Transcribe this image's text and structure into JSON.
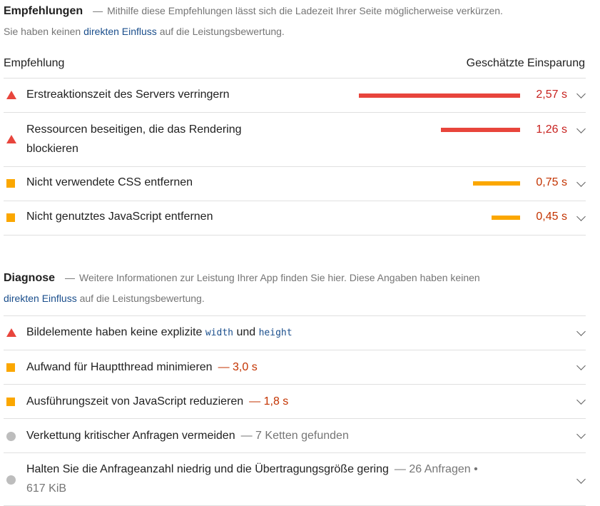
{
  "recommendations": {
    "title": "Empfehlungen",
    "dash": "—",
    "desc_before": "Mithilfe diese Empfehlungen lässt sich die Ladezeit Ihrer Seite möglicherweise verkürzen.",
    "desc_line2_before": "Sie haben keinen",
    "desc_link": "direkten Einfluss",
    "desc_after": "auf die Leistungsbewertung.",
    "col_left": "Empfehlung",
    "col_right": "Geschätzte Einsparung",
    "items": [
      {
        "label": "Erstreaktionszeit des Servers verringern",
        "value": "2,57 s",
        "savings_s": 2.57,
        "severity": "fail"
      },
      {
        "label_line1": "Ressourcen beseitigen, die das Rendering",
        "label_line2": "blockieren",
        "value": "1,26 s",
        "savings_s": 1.26,
        "severity": "fail"
      },
      {
        "label": "Nicht verwendete CSS entfernen",
        "value": "0,75 s",
        "savings_s": 0.75,
        "severity": "average"
      },
      {
        "label": "Nicht genutztes JavaScript entfernen",
        "value": "0,45 s",
        "savings_s": 0.45,
        "severity": "average"
      }
    ]
  },
  "diagnostics": {
    "title": "Diagnose",
    "dash": "—",
    "desc_before": "Weitere Informationen zur Leistung Ihrer App finden Sie hier. Diese Angaben haben keinen",
    "desc_link": "direkten Einfluss",
    "desc_after": "auf die Leistungsbewertung.",
    "items": [
      {
        "label_before": "Bildelemente haben keine explizite",
        "code1": "width",
        "label_mid": "und",
        "code2": "height",
        "severity": "fail"
      },
      {
        "label": "Aufwand für Hauptthread minimieren",
        "sub": "— 3,0 s",
        "severity": "average"
      },
      {
        "label": "Ausführungszeit von JavaScript reduzieren",
        "sub": "— 1,8 s",
        "severity": "average"
      },
      {
        "label": "Verkettung kritischer Anfragen vermeiden",
        "sub": "— 7 Ketten gefunden",
        "severity": "info"
      },
      {
        "label_line1": "Halten Sie die Anfrageanzahl niedrig und die Übertragungsgröße gering",
        "sub_line1": "— 26 Anfragen •",
        "sub_line2": "617 KiB",
        "severity": "info"
      }
    ]
  },
  "colors": {
    "fail": "#e8453c",
    "average": "#fba700",
    "info": "#bdbdbd",
    "link": "#1a4e8c"
  }
}
